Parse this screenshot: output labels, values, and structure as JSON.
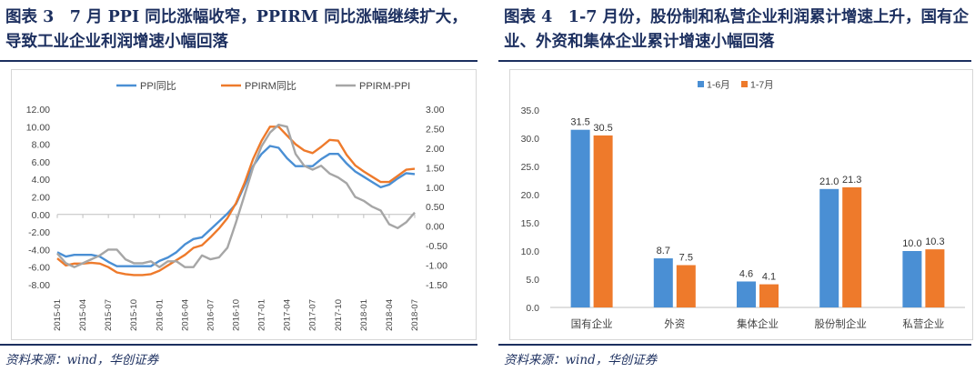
{
  "left": {
    "title": "图表 3　7 月 PPI 同比涨幅收窄，PPIRM 同比涨幅继续扩大，导致工业企业利润增速小幅回落",
    "source": "资料来源：wind，华创证券"
  },
  "right": {
    "title": "图表 4　1-7 月份，股份制和私营企业利润累计增速上升，国有企业、外资和集体企业累计增速小幅回落",
    "source": "资料来源：wind，华创证券"
  },
  "chart_data": [
    {
      "type": "line",
      "x_tick_labels": [
        "2015-01",
        "2015-04",
        "2015-07",
        "2015-10",
        "2016-01",
        "2016-04",
        "2016-07",
        "2016-10",
        "2017-01",
        "2017-04",
        "2017-07",
        "2017-10",
        "2018-01",
        "2018-04",
        "2018-07"
      ],
      "x": [
        "2015-01",
        "2015-02",
        "2015-03",
        "2015-04",
        "2015-05",
        "2015-06",
        "2015-07",
        "2015-08",
        "2015-09",
        "2015-10",
        "2015-11",
        "2015-12",
        "2016-01",
        "2016-02",
        "2016-03",
        "2016-04",
        "2016-05",
        "2016-06",
        "2016-07",
        "2016-08",
        "2016-09",
        "2016-10",
        "2016-11",
        "2016-12",
        "2017-01",
        "2017-02",
        "2017-03",
        "2017-04",
        "2017-05",
        "2017-06",
        "2017-07",
        "2017-08",
        "2017-09",
        "2017-10",
        "2017-11",
        "2017-12",
        "2018-01",
        "2018-02",
        "2018-03",
        "2018-04",
        "2018-05",
        "2018-06",
        "2018-07"
      ],
      "y_left_ticks": [
        "12.00",
        "10.00",
        "8.00",
        "6.00",
        "4.00",
        "2.00",
        "0.00",
        "-2.00",
        "-4.00",
        "-6.00",
        "-8.00"
      ],
      "y_right_ticks": [
        "3.00",
        "2.50",
        "2.00",
        "1.50",
        "1.00",
        "0.50",
        "0.00",
        "-0.50",
        "-1.00",
        "-1.50"
      ],
      "ylim_left": [
        -8,
        12
      ],
      "ylim_right": [
        -1.5,
        3
      ],
      "legend_position": "top",
      "series": [
        {
          "name": "PPI同比",
          "axis": "left",
          "color": "#4a8fd4",
          "values": [
            -4.3,
            -4.8,
            -4.6,
            -4.6,
            -4.6,
            -4.8,
            -5.4,
            -5.9,
            -5.9,
            -5.9,
            -5.9,
            -5.9,
            -5.3,
            -4.9,
            -4.3,
            -3.4,
            -2.8,
            -2.6,
            -1.7,
            -0.8,
            0.1,
            1.2,
            3.3,
            5.5,
            6.9,
            7.8,
            7.6,
            6.4,
            5.5,
            5.5,
            5.5,
            6.3,
            6.9,
            6.9,
            5.8,
            4.9,
            4.3,
            3.7,
            3.1,
            3.4,
            4.1,
            4.7,
            4.6
          ]
        },
        {
          "name": "PPIRM同比",
          "axis": "left",
          "color": "#ee7a2b",
          "values": [
            -5.0,
            -5.8,
            -5.6,
            -5.6,
            -5.5,
            -5.6,
            -6.0,
            -6.6,
            -6.8,
            -6.9,
            -6.9,
            -6.8,
            -6.4,
            -5.8,
            -5.2,
            -4.6,
            -3.8,
            -3.5,
            -2.6,
            -1.6,
            -0.4,
            1.3,
            3.6,
            6.3,
            8.4,
            10.0,
            10.0,
            9.0,
            8.0,
            7.3,
            7.0,
            7.7,
            8.5,
            8.4,
            6.8,
            5.6,
            4.9,
            4.3,
            3.7,
            3.7,
            4.4,
            5.1,
            5.2
          ]
        },
        {
          "name": "PPIRM-PPI",
          "axis": "right",
          "color": "#a6a6a6",
          "values": [
            -0.7,
            -0.95,
            -1.05,
            -0.95,
            -0.85,
            -0.75,
            -0.6,
            -0.6,
            -0.85,
            -0.95,
            -0.95,
            -0.9,
            -1.05,
            -0.9,
            -0.9,
            -1.05,
            -1.05,
            -0.75,
            -0.85,
            -0.8,
            -0.55,
            0.1,
            0.8,
            1.5,
            2.05,
            2.4,
            2.6,
            2.55,
            1.85,
            1.55,
            1.45,
            1.55,
            1.35,
            1.25,
            1.1,
            0.75,
            0.65,
            0.5,
            0.4,
            0.05,
            -0.05,
            0.1,
            0.35
          ]
        }
      ]
    },
    {
      "type": "bar",
      "categories": [
        "国有企业",
        "外资",
        "集体企业",
        "股份制企业",
        "私营企业"
      ],
      "ylim": [
        0,
        35
      ],
      "y_ticks": [
        "35.0",
        "30.0",
        "25.0",
        "20.0",
        "15.0",
        "10.0",
        "5.0",
        "0.0"
      ],
      "legend_position": "top",
      "series": [
        {
          "name": "1-6月",
          "color": "#4a8fd4",
          "values": [
            31.5,
            8.7,
            4.6,
            21.0,
            10.0
          ],
          "labels": [
            "31.5",
            "8.7",
            "4.6",
            "21.0",
            "10.0"
          ]
        },
        {
          "name": "1-7月",
          "color": "#ee7a2b",
          "values": [
            30.5,
            7.5,
            4.1,
            21.3,
            10.3
          ],
          "labels": [
            "30.5",
            "7.5",
            "4.1",
            "21.3",
            "10.3"
          ]
        }
      ]
    }
  ]
}
